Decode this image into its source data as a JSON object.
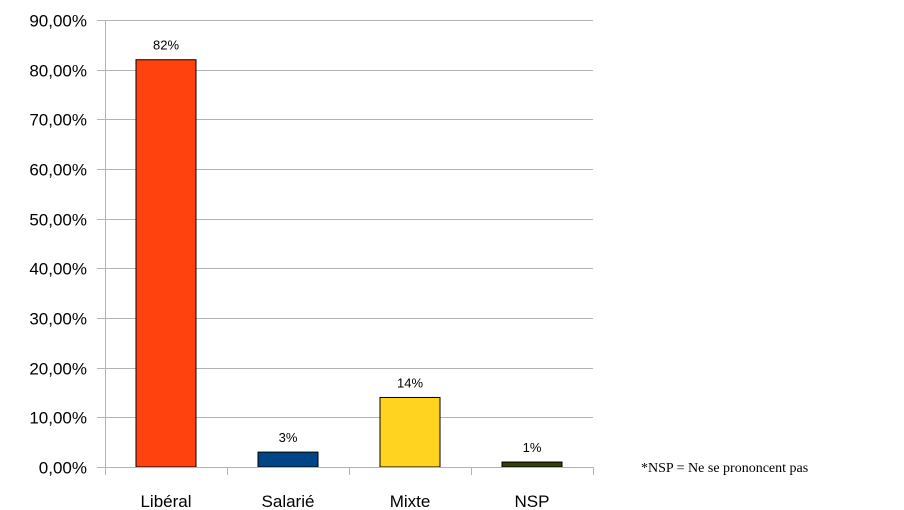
{
  "chart_data": {
    "type": "bar",
    "categories": [
      "Libéral",
      "Salarié",
      "Mixte",
      "NSP"
    ],
    "values": [
      82,
      3,
      14,
      1
    ],
    "data_labels": [
      "82%",
      "3%",
      "14%",
      "1%"
    ],
    "title": "",
    "xlabel": "",
    "ylabel": "",
    "ylim": [
      0,
      90
    ],
    "yticks": [
      0,
      10,
      20,
      30,
      40,
      50,
      60,
      70,
      80,
      90
    ],
    "ytick_labels": [
      "0,00%",
      "10,00%",
      "20,00%",
      "30,00%",
      "40,00%",
      "50,00%",
      "60,00%",
      "70,00%",
      "80,00%",
      "90,00%"
    ],
    "grid": "horizontal",
    "legend": "none",
    "bar_colors": [
      "#ff420e",
      "#004586",
      "#ffd320",
      "#314004"
    ],
    "footnote": "*NSP = Ne se prononcent pas"
  }
}
